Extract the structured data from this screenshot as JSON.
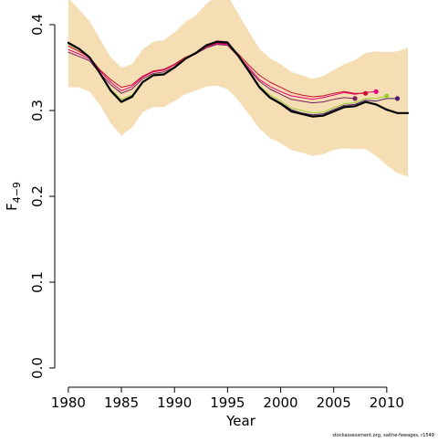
{
  "chart_data": {
    "type": "line",
    "title": "",
    "xlabel": "Year",
    "ylabel": "F",
    "ylabel_bar": "‾",
    "ylabel_sub": "4−9",
    "xlim": [
      1980,
      2012
    ],
    "ylim": [
      0.0,
      0.4
    ],
    "x_ticks": [
      1980,
      1985,
      1990,
      1995,
      2000,
      2005,
      2010
    ],
    "y_ticks": [
      0.0,
      0.1,
      0.2,
      0.3,
      0.4
    ],
    "y_tick_labels": [
      "0.0",
      "0.1",
      "0.2",
      "0.3",
      "0.4"
    ],
    "grid": false,
    "legend": "none",
    "footnote": "stockassessment.org, saithe-fewages, r1549",
    "band": {
      "color": "#f5deb3",
      "x": [
        1980,
        1981,
        1982,
        1983,
        1984,
        1985,
        1986,
        1987,
        1988,
        1989,
        1990,
        1991,
        1992,
        1993,
        1994,
        1995,
        1996,
        1997,
        1998,
        1999,
        2000,
        2001,
        2002,
        2003,
        2004,
        2005,
        2006,
        2007,
        2008,
        2009,
        2010,
        2011,
        2012
      ],
      "lower": [
        0.327,
        0.327,
        0.322,
        0.306,
        0.285,
        0.271,
        0.28,
        0.298,
        0.304,
        0.304,
        0.311,
        0.319,
        0.323,
        0.328,
        0.329,
        0.325,
        0.312,
        0.296,
        0.279,
        0.268,
        0.262,
        0.254,
        0.251,
        0.247,
        0.249,
        0.254,
        0.256,
        0.255,
        0.255,
        0.247,
        0.236,
        0.227,
        0.223
      ],
      "upper": [
        0.431,
        0.418,
        0.404,
        0.383,
        0.362,
        0.35,
        0.354,
        0.371,
        0.38,
        0.382,
        0.391,
        0.403,
        0.411,
        0.424,
        0.434,
        0.434,
        0.413,
        0.392,
        0.372,
        0.361,
        0.354,
        0.345,
        0.341,
        0.337,
        0.34,
        0.347,
        0.354,
        0.359,
        0.367,
        0.369,
        0.368,
        0.369,
        0.373
      ]
    },
    "series": [
      {
        "color": "#000000",
        "width": 2.2,
        "x": [
          1980,
          1981,
          1982,
          1983,
          1984,
          1985,
          1986,
          1987,
          1988,
          1989,
          1990,
          1991,
          1992,
          1993,
          1994,
          1995,
          1996,
          1997,
          1998,
          1999,
          2000,
          2001,
          2002,
          2003,
          2004,
          2005,
          2006,
          2007,
          2008,
          2009,
          2010,
          2011,
          2012
        ],
        "values": [
          0.379,
          0.372,
          0.362,
          0.343,
          0.323,
          0.31,
          0.316,
          0.333,
          0.341,
          0.342,
          0.35,
          0.36,
          0.367,
          0.376,
          0.38,
          0.379,
          0.364,
          0.346,
          0.327,
          0.315,
          0.308,
          0.299,
          0.296,
          0.293,
          0.294,
          0.299,
          0.304,
          0.305,
          0.31,
          0.307,
          0.301,
          0.297,
          0.297
        ]
      },
      {
        "color": "#e4007c",
        "width": 1,
        "end_marker": true,
        "x": [
          1980,
          1981,
          1982,
          1983,
          1984,
          1985,
          1986,
          1987,
          1988,
          1989,
          1990,
          1991,
          1992,
          1993,
          1994,
          1995,
          1996,
          1997,
          1998,
          1999,
          2000,
          2001,
          2002,
          2003,
          2004,
          2005,
          2006,
          2007,
          2008,
          2009
        ],
        "values": [
          0.371,
          0.366,
          0.36,
          0.346,
          0.333,
          0.323,
          0.328,
          0.339,
          0.345,
          0.347,
          0.353,
          0.361,
          0.366,
          0.374,
          0.378,
          0.377,
          0.364,
          0.35,
          0.336,
          0.328,
          0.322,
          0.317,
          0.315,
          0.313,
          0.315,
          0.318,
          0.321,
          0.319,
          0.321,
          0.322
        ]
      },
      {
        "color": "#c8102e",
        "width": 1,
        "end_marker": true,
        "x": [
          1980,
          1981,
          1982,
          1983,
          1984,
          1985,
          1986,
          1987,
          1988,
          1989,
          1990,
          1991,
          1992,
          1993,
          1994,
          1995,
          1996,
          1997,
          1998,
          1999,
          2000,
          2001,
          2002,
          2003,
          2004,
          2005,
          2006,
          2007,
          2008
        ],
        "values": [
          0.375,
          0.369,
          0.362,
          0.347,
          0.336,
          0.327,
          0.33,
          0.34,
          0.346,
          0.348,
          0.354,
          0.362,
          0.367,
          0.375,
          0.379,
          0.378,
          0.366,
          0.353,
          0.341,
          0.333,
          0.327,
          0.321,
          0.318,
          0.316,
          0.317,
          0.32,
          0.322,
          0.32,
          0.32
        ]
      },
      {
        "color": "#7a1f5c",
        "width": 1,
        "end_marker": true,
        "x": [
          1980,
          1981,
          1982,
          1983,
          1984,
          1985,
          1986,
          1987,
          1988,
          1989,
          1990,
          1991,
          1992,
          1993,
          1994,
          1995,
          1996,
          1997,
          1998,
          1999,
          2000,
          2001,
          2002,
          2003,
          2004,
          2005,
          2006,
          2007
        ],
        "values": [
          0.368,
          0.363,
          0.358,
          0.343,
          0.33,
          0.32,
          0.325,
          0.337,
          0.343,
          0.345,
          0.351,
          0.36,
          0.366,
          0.373,
          0.377,
          0.376,
          0.363,
          0.348,
          0.334,
          0.325,
          0.319,
          0.313,
          0.311,
          0.309,
          0.31,
          0.313,
          0.315,
          0.314
        ]
      },
      {
        "color": "#9acd32",
        "width": 1,
        "end_marker": true,
        "x": [
          1980,
          1981,
          1982,
          1983,
          1984,
          1985,
          1986,
          1987,
          1988,
          1989,
          1990,
          1991,
          1992,
          1993,
          1994,
          1995,
          1996,
          1997,
          1998,
          1999,
          2000,
          2001,
          2002,
          2003,
          2004,
          2005,
          2006,
          2007,
          2008,
          2009,
          2010
        ],
        "values": [
          0.377,
          0.371,
          0.362,
          0.343,
          0.325,
          0.313,
          0.318,
          0.334,
          0.342,
          0.343,
          0.351,
          0.361,
          0.367,
          0.376,
          0.381,
          0.38,
          0.365,
          0.347,
          0.329,
          0.318,
          0.311,
          0.303,
          0.3,
          0.297,
          0.298,
          0.303,
          0.308,
          0.309,
          0.314,
          0.314,
          0.317
        ]
      },
      {
        "color": "#4b1a6e",
        "width": 1,
        "end_marker": true,
        "x": [
          1980,
          1981,
          1982,
          1983,
          1984,
          1985,
          1986,
          1987,
          1988,
          1989,
          1990,
          1991,
          1992,
          1993,
          1994,
          1995,
          1996,
          1997,
          1998,
          1999,
          2000,
          2001,
          2002,
          2003,
          2004,
          2005,
          2006,
          2007,
          2008,
          2009,
          2010,
          2011
        ],
        "values": [
          0.378,
          0.372,
          0.362,
          0.343,
          0.324,
          0.311,
          0.317,
          0.333,
          0.341,
          0.342,
          0.35,
          0.36,
          0.367,
          0.376,
          0.381,
          0.38,
          0.365,
          0.346,
          0.328,
          0.316,
          0.309,
          0.301,
          0.297,
          0.295,
          0.296,
          0.301,
          0.306,
          0.307,
          0.312,
          0.311,
          0.314,
          0.314
        ]
      }
    ]
  }
}
